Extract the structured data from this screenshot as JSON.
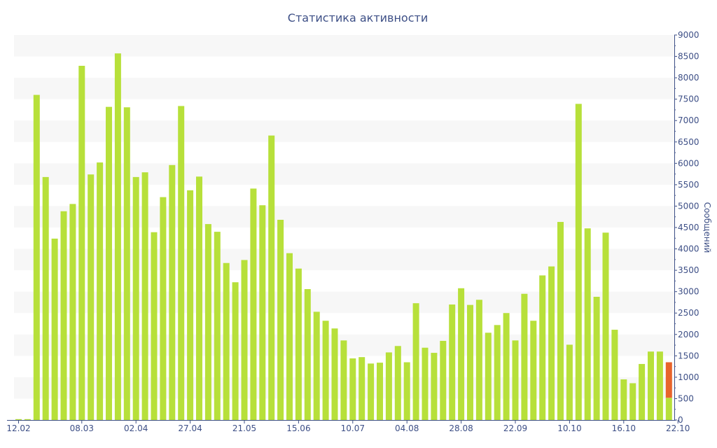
{
  "chart_data": {
    "type": "bar",
    "title": "Статистика активности",
    "xlabel": "",
    "ylabel": "Сообщений",
    "ylim": [
      0,
      9000
    ],
    "yticks": [
      0,
      500,
      1000,
      1500,
      2000,
      2500,
      3000,
      3500,
      4000,
      4500,
      5000,
      5500,
      6000,
      6500,
      7000,
      7500,
      8000,
      8500,
      9000
    ],
    "y_axis_side": "right",
    "grid": "horizontal bands",
    "x_tick_labels": [
      {
        "index": 0,
        "label": "12.02"
      },
      {
        "index": 7,
        "label": "08.03"
      },
      {
        "index": 13,
        "label": "02.04"
      },
      {
        "index": 19,
        "label": "27.04"
      },
      {
        "index": 25,
        "label": "21.05"
      },
      {
        "index": 31,
        "label": "15.06"
      },
      {
        "index": 37,
        "label": "10.07"
      },
      {
        "index": 43,
        "label": "04.08"
      },
      {
        "index": 49,
        "label": "28.08"
      },
      {
        "index": 55,
        "label": "22.09"
      },
      {
        "index": 61,
        "label": "10.10"
      },
      {
        "index": 67,
        "label": "16.10"
      },
      {
        "index": 73,
        "label": "22.10"
      }
    ],
    "values": [
      20,
      20,
      7600,
      5680,
      4240,
      4880,
      5050,
      8280,
      5740,
      6020,
      7320,
      8570,
      7310,
      5680,
      5790,
      4390,
      5210,
      5960,
      7340,
      5370,
      5690,
      4580,
      4400,
      3670,
      3220,
      3740,
      5410,
      5020,
      6650,
      4680,
      3900,
      3540,
      3060,
      2530,
      2320,
      2140,
      1860,
      1440,
      1470,
      1320,
      1340,
      1580,
      1730,
      1350,
      2730,
      1690,
      1570,
      1850,
      2700,
      3080,
      2690,
      2810,
      2040,
      2220,
      2500,
      1860,
      2950,
      2320,
      3380,
      3590,
      4630,
      1760,
      7390,
      4480,
      2880,
      4380,
      2110,
      950,
      860,
      1310,
      1600,
      1600,
      1350
    ],
    "highlight": {
      "index": 72,
      "value": 1350,
      "base_value": 520,
      "color": "#e8642b"
    },
    "colors": {
      "bar": "#b7e03a",
      "highlight": "#e8642b",
      "text": "#3d4f86",
      "band": "#f7f7f7"
    }
  }
}
